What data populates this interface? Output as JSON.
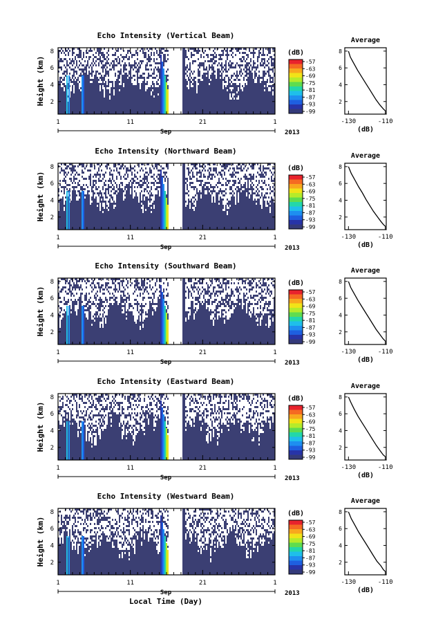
{
  "colorbar": {
    "unit": "(dB)",
    "ticks": [
      "-57",
      "-63",
      "-69",
      "-75",
      "-81",
      "-87",
      "-93",
      "-99"
    ],
    "colors": [
      "#e8232d",
      "#f56a22",
      "#f8a81e",
      "#f1e318",
      "#b6eb2a",
      "#5fdc4f",
      "#23d7a9",
      "#1fbfea",
      "#1e8ff0",
      "#1e5fe0",
      "#2734a8",
      "#343a7a"
    ]
  },
  "colors": {
    "background": "#3b3f73",
    "missing": "#ffffff",
    "gap": "#ffffff",
    "profile_line": "#000000"
  },
  "chart_data": [
    {
      "type": "heatmap",
      "title": "Echo Intensity (Vertical Beam)",
      "ylabel": "Height (km)",
      "yticks": [
        "2",
        "4",
        "6",
        "8"
      ],
      "xticks": [
        "1",
        "11",
        "21",
        "1"
      ],
      "month_label": "Sep",
      "year_label": "2013",
      "xlabel": "",
      "profile": {
        "title": "Average",
        "xlabel": "(dB)",
        "xticks": [
          "-130",
          "-110"
        ],
        "yticks": [
          "2",
          "4",
          "6",
          "8"
        ],
        "points": [
          [
            -130,
            8
          ],
          [
            -129,
            7.3
          ],
          [
            -127,
            6.5
          ],
          [
            -125,
            5.7
          ],
          [
            -123,
            5
          ],
          [
            -121,
            4.3
          ],
          [
            -119,
            3.6
          ],
          [
            -117,
            2.9
          ],
          [
            -115,
            2.2
          ],
          [
            -113,
            1.6
          ],
          [
            -111,
            1.1
          ],
          [
            -110,
            0.9
          ]
        ]
      }
    },
    {
      "type": "heatmap",
      "title": "Echo Intensity (Northward Beam)",
      "ylabel": "Height (km)",
      "yticks": [
        "2",
        "4",
        "6",
        "8"
      ],
      "xticks": [
        "1",
        "11",
        "21",
        "1"
      ],
      "month_label": "Sep",
      "year_label": "2013",
      "xlabel": "",
      "profile": {
        "title": "Average",
        "xlabel": "(dB)",
        "xticks": [
          "-130",
          "-110"
        ],
        "yticks": [
          "2",
          "4",
          "6",
          "8"
        ],
        "points": [
          [
            -130,
            8
          ],
          [
            -128.5,
            7.2
          ],
          [
            -126.5,
            6.4
          ],
          [
            -124.5,
            5.6
          ],
          [
            -122.5,
            4.9
          ],
          [
            -120.5,
            4.1
          ],
          [
            -118.5,
            3.4
          ],
          [
            -116.5,
            2.7
          ],
          [
            -114.5,
            2.1
          ],
          [
            -112.5,
            1.5
          ],
          [
            -111,
            1.1
          ],
          [
            -110,
            0.9
          ]
        ]
      }
    },
    {
      "type": "heatmap",
      "title": "Echo Intensity (Southward Beam)",
      "ylabel": "Height (km)",
      "yticks": [
        "2",
        "4",
        "6",
        "8"
      ],
      "xticks": [
        "1",
        "11",
        "21",
        "1"
      ],
      "month_label": "Sep",
      "year_label": "2013",
      "xlabel": "",
      "profile": {
        "title": "Average",
        "xlabel": "(dB)",
        "xticks": [
          "-130",
          "-110"
        ],
        "yticks": [
          "2",
          "4",
          "6",
          "8"
        ],
        "points": [
          [
            -130,
            8
          ],
          [
            -128.8,
            7.3
          ],
          [
            -127,
            6.6
          ],
          [
            -125,
            5.8
          ],
          [
            -123,
            5.1
          ],
          [
            -121,
            4.4
          ],
          [
            -119,
            3.7
          ],
          [
            -117,
            3
          ],
          [
            -115,
            2.3
          ],
          [
            -113,
            1.7
          ],
          [
            -111.3,
            1.2
          ],
          [
            -110,
            0.9
          ]
        ]
      }
    },
    {
      "type": "heatmap",
      "title": "Echo Intensity (Eastward Beam)",
      "ylabel": "Height (km)",
      "yticks": [
        "2",
        "4",
        "6",
        "8"
      ],
      "xticks": [
        "1",
        "11",
        "21",
        "1"
      ],
      "month_label": "Sep",
      "year_label": "2013",
      "xlabel": "",
      "profile": {
        "title": "Average",
        "xlabel": "(dB)",
        "xticks": [
          "-130",
          "-110"
        ],
        "yticks": [
          "2",
          "4",
          "6",
          "8"
        ],
        "points": [
          [
            -130,
            8
          ],
          [
            -128.6,
            7.3
          ],
          [
            -126.8,
            6.5
          ],
          [
            -124.8,
            5.7
          ],
          [
            -122.8,
            5
          ],
          [
            -120.8,
            4.3
          ],
          [
            -118.8,
            3.6
          ],
          [
            -116.8,
            2.9
          ],
          [
            -114.8,
            2.2
          ],
          [
            -112.8,
            1.6
          ],
          [
            -111.1,
            1.1
          ],
          [
            -110,
            0.9
          ]
        ]
      }
    },
    {
      "type": "heatmap",
      "title": "Echo Intensity (Westward Beam)",
      "ylabel": "Height (km)",
      "yticks": [
        "2",
        "4",
        "6",
        "8"
      ],
      "xticks": [
        "1",
        "11",
        "21",
        "1"
      ],
      "month_label": "Sep",
      "year_label": "2013",
      "xlabel": "Local Time (Day)",
      "profile": {
        "title": "Average",
        "xlabel": "(dB)",
        "xticks": [
          "-130",
          "-110"
        ],
        "yticks": [
          "2",
          "4",
          "6",
          "8"
        ],
        "points": [
          [
            -130,
            8
          ],
          [
            -128.5,
            7.2
          ],
          [
            -126.5,
            6.4
          ],
          [
            -124.5,
            5.6
          ],
          [
            -122.5,
            4.9
          ],
          [
            -120.5,
            4.2
          ],
          [
            -118.5,
            3.5
          ],
          [
            -116.5,
            2.8
          ],
          [
            -114.5,
            2.1
          ],
          [
            -112.5,
            1.6
          ],
          [
            -111,
            1.1
          ],
          [
            -110,
            0.9
          ]
        ]
      }
    }
  ]
}
